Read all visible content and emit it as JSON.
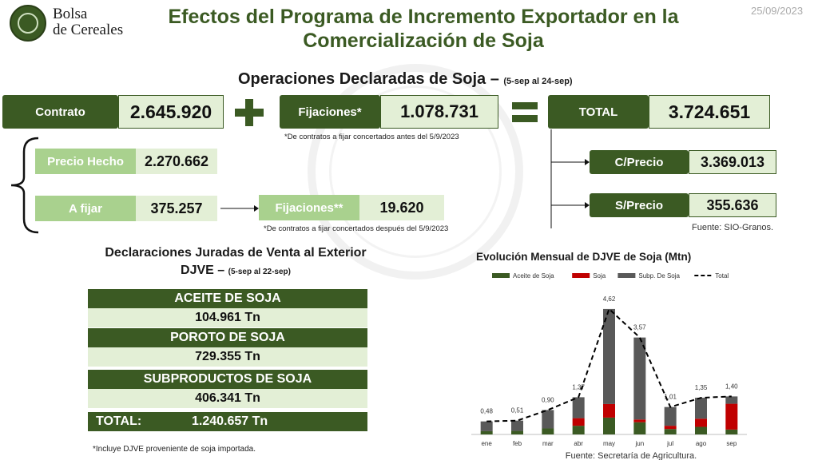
{
  "header": {
    "brand_line1": "Bolsa",
    "brand_line2": "de Cereales",
    "title_line1": "Efectos del Programa de Incremento Exportador en la",
    "title_line2": "Comercialización de Soja",
    "date": "25/09/2023"
  },
  "operaciones": {
    "title": "Operaciones Declaradas de Soja –",
    "period": "(5-sep al 24-sep)",
    "contrato_label": "Contrato",
    "contrato_value": "2.645.920",
    "fijaciones_label": "Fijaciones*",
    "fijaciones_value": "1.078.731",
    "total_label": "TOTAL",
    "total_value": "3.724.651",
    "note1": "*De contratos a fijar concertados antes del 5/9/2023",
    "precio_hecho_label": "Precio Hecho",
    "precio_hecho_value": "2.270.662",
    "a_fijar_label": "A fijar",
    "a_fijar_value": "375.257",
    "fijaciones2_label": "Fijaciones**",
    "fijaciones2_value": "19.620",
    "note2": "*De contratos a fijar concertados después del 5/9/2023",
    "cprecio_label": "C/Precio",
    "cprecio_value": "3.369.013",
    "sprecio_label": "S/Precio",
    "sprecio_value": "355.636",
    "source": "Fuente: SIO-Granos."
  },
  "djve": {
    "title_line1": "Declaraciones Juradas de Venta al Exterior",
    "title_line2": "DJVE –",
    "period": "(5-sep al 22-sep)",
    "aceite_label": "ACEITE DE SOJA",
    "aceite_value": "104.961 Tn",
    "poroto_label": "POROTO DE SOJA",
    "poroto_value": "729.355 Tn",
    "subproductos_label": "SUBPRODUCTOS DE SOJA",
    "subproductos_value": "406.341 Tn",
    "total_label": "TOTAL:",
    "total_value": "1.240.657 Tn",
    "note": "*Incluye DJVE proveniente de soja importada."
  },
  "chart_data": {
    "type": "bar",
    "title": "Evolución Mensual de DJVE de Soja (Mtn)",
    "categories": [
      "ene",
      "feb",
      "mar",
      "abr",
      "may",
      "jun",
      "jul",
      "ago",
      "sep"
    ],
    "series": [
      {
        "name": "Aceite de Soja",
        "color": "#3b5a23",
        "values": [
          0.12,
          0.13,
          0.22,
          0.32,
          0.62,
          0.45,
          0.2,
          0.28,
          0.18
        ]
      },
      {
        "name": "Soja",
        "color": "#c00000",
        "values": [
          0.0,
          0.0,
          0.0,
          0.28,
          0.5,
          0.1,
          0.12,
          0.3,
          0.95
        ]
      },
      {
        "name": "Subp. De Soja",
        "color": "#595959",
        "values": [
          0.36,
          0.38,
          0.68,
          0.77,
          3.5,
          3.02,
          0.69,
          0.77,
          0.27
        ]
      },
      {
        "name": "Total",
        "type": "line",
        "style": "dashed",
        "color": "#000000",
        "values": [
          0.48,
          0.51,
          0.9,
          1.37,
          4.62,
          3.57,
          1.01,
          1.35,
          1.4
        ]
      }
    ],
    "data_labels": [
      "0,48",
      "0,51",
      "0,90",
      "1,37",
      "4,62",
      "3,57",
      "1,01",
      "1,35",
      "1,40"
    ],
    "ylim": [
      0,
      5
    ],
    "legend": "top",
    "source": "Fuente: Secretaría de Agricultura."
  }
}
